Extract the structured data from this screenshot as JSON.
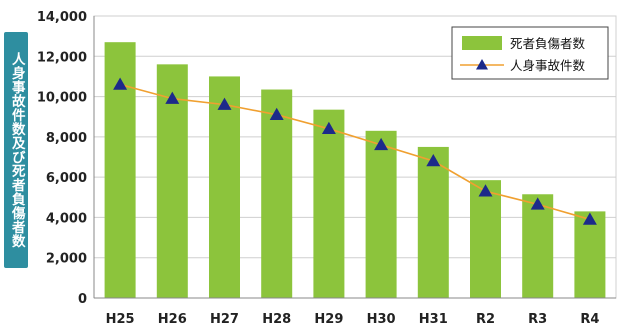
{
  "chart_data": {
    "type": "bar",
    "title": "",
    "xlabel": "",
    "ylabel": "人身事故件数及び死者負傷者数",
    "categories": [
      "H25",
      "H26",
      "H27",
      "H28",
      "H29",
      "H30",
      "H31",
      "R2",
      "R3",
      "R4"
    ],
    "series": [
      {
        "name": "死者負傷者数",
        "type": "bar",
        "color": "#8cc43c",
        "values": [
          12700,
          11600,
          11000,
          10350,
          9350,
          8300,
          7500,
          5850,
          5150,
          4300
        ]
      },
      {
        "name": "人身事故件数",
        "type": "line",
        "color": "#f0a030",
        "marker_color": "#1c2a8a",
        "values": [
          10600,
          9900,
          9600,
          9100,
          8400,
          7600,
          6800,
          5300,
          4650,
          3900
        ]
      }
    ],
    "ylim": [
      0,
      14000
    ],
    "yticks": [
      "0",
      "2,000",
      "4,000",
      "6,000",
      "8,000",
      "10,000",
      "12,000",
      "14,000"
    ],
    "ytick_values": [
      0,
      2000,
      4000,
      6000,
      8000,
      10000,
      12000,
      14000
    ],
    "grid": true,
    "legend_position": "top-right"
  }
}
